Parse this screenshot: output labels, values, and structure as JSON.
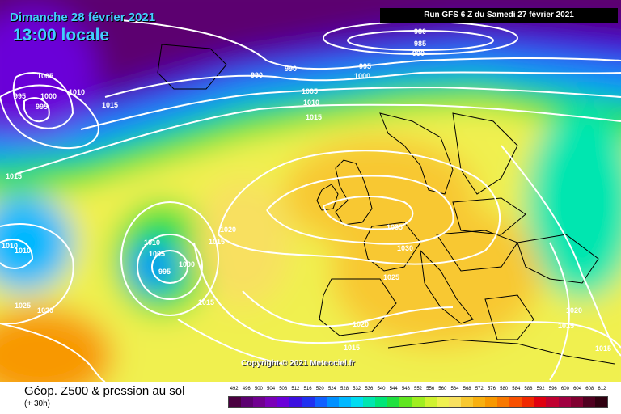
{
  "header": {
    "date": "Dimanche 28 février 2021",
    "local_time": "13:00 locale",
    "run_info": "Run GFS 6 Z du Samedi 27 février 2021"
  },
  "copyright": "Copyright © 2021 Meteociel.fr",
  "footer": {
    "title": "Géop. Z500 & pression au sol",
    "subtitle": "(+ 30h)"
  },
  "isobar_labels": [
    "980",
    "985",
    "990",
    "990",
    "990",
    "995",
    "1000",
    "1005",
    "1010",
    "1015",
    "1005",
    "1000",
    "995",
    "995",
    "1010",
    "1015",
    "1015",
    "1010",
    "1010",
    "1010",
    "1005",
    "995",
    "1000",
    "1020",
    "1015",
    "1035",
    "1030",
    "1025",
    "1025",
    "1030",
    "1015",
    "1020",
    "1015",
    "1020",
    "1015",
    "1015"
  ],
  "scale": {
    "labels": [
      "492",
      "496",
      "500",
      "504",
      "508",
      "512",
      "516",
      "520",
      "524",
      "528",
      "532",
      "536",
      "540",
      "544",
      "548",
      "552",
      "556",
      "560",
      "564",
      "568",
      "572",
      "576",
      "580",
      "584",
      "588",
      "592",
      "596",
      "600",
      "604",
      "608",
      "612"
    ],
    "colors": [
      "#4a0040",
      "#5c0070",
      "#700090",
      "#7a00b8",
      "#6a00d8",
      "#3c10e0",
      "#2030f0",
      "#1060ff",
      "#0090ff",
      "#00b8ff",
      "#00dcf0",
      "#00e6b0",
      "#00e678",
      "#20e040",
      "#60e620",
      "#a0ee20",
      "#d0f230",
      "#f0f050",
      "#f8e060",
      "#f8c830",
      "#f8b010",
      "#f89800",
      "#f87800",
      "#f85000",
      "#f02800",
      "#e00010",
      "#c00030",
      "#a00040",
      "#800030",
      "#500020",
      "#300010"
    ]
  }
}
